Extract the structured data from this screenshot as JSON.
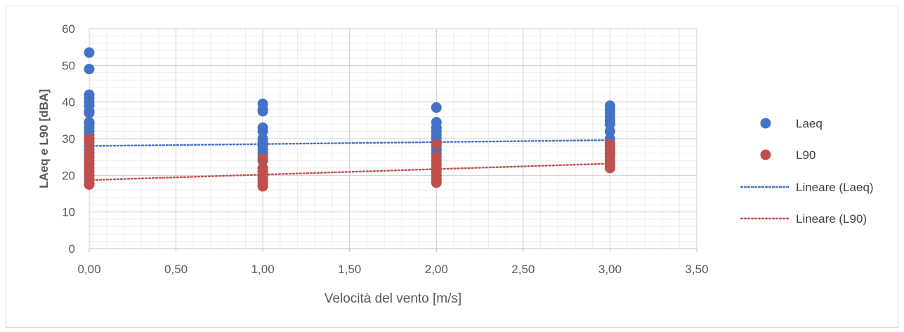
{
  "chart_data": {
    "type": "scatter",
    "title": "",
    "xlabel": "Velocità del vento [m/s]",
    "ylabel": "LAeq e L90 [dBA]",
    "xlim": [
      0,
      3.5
    ],
    "ylim": [
      0,
      60
    ],
    "x_ticks": [
      "0,00",
      "0,50",
      "1,00",
      "1,50",
      "2,00",
      "2,50",
      "3,00",
      "3,50"
    ],
    "y_ticks": [
      "0",
      "10",
      "20",
      "30",
      "40",
      "50",
      "60"
    ],
    "grid": true,
    "legend_position": "right",
    "series": [
      {
        "name": "Laeq",
        "color": "#4472c4",
        "points": [
          [
            0,
            53.5
          ],
          [
            0,
            49
          ],
          [
            0,
            42
          ],
          [
            0,
            41
          ],
          [
            0,
            40
          ],
          [
            0,
            39
          ],
          [
            0,
            37.5
          ],
          [
            0,
            37
          ],
          [
            0,
            34.5
          ],
          [
            0,
            34
          ],
          [
            0,
            33
          ],
          [
            0,
            32
          ],
          [
            0,
            31
          ],
          [
            0,
            30
          ],
          [
            0,
            29
          ],
          [
            0,
            28
          ],
          [
            0,
            27
          ],
          [
            0,
            26
          ],
          [
            0,
            25
          ],
          [
            1,
            39.5
          ],
          [
            1,
            38
          ],
          [
            1,
            37.5
          ],
          [
            1,
            33
          ],
          [
            1,
            32
          ],
          [
            1,
            30
          ],
          [
            1,
            29
          ],
          [
            1,
            28
          ],
          [
            1,
            27
          ],
          [
            1,
            26
          ],
          [
            1,
            25
          ],
          [
            1,
            24
          ],
          [
            1,
            22
          ],
          [
            1,
            21
          ],
          [
            2,
            38.5
          ],
          [
            2,
            34.5
          ],
          [
            2,
            33
          ],
          [
            2,
            32
          ],
          [
            2,
            31
          ],
          [
            2,
            30
          ],
          [
            2,
            29
          ],
          [
            2,
            28
          ],
          [
            2,
            27
          ],
          [
            2,
            26
          ],
          [
            3,
            39
          ],
          [
            3,
            38
          ],
          [
            3,
            37
          ],
          [
            3,
            36
          ],
          [
            3,
            35
          ],
          [
            3,
            34
          ],
          [
            3,
            32
          ],
          [
            3,
            30
          ],
          [
            3,
            29
          ],
          [
            3,
            28
          ],
          [
            3,
            27
          ],
          [
            3,
            26
          ]
        ]
      },
      {
        "name": "L90",
        "color": "#c0504d",
        "points": [
          [
            0,
            30
          ],
          [
            0,
            29
          ],
          [
            0,
            27
          ],
          [
            0,
            25
          ],
          [
            0,
            24
          ],
          [
            0,
            23
          ],
          [
            0,
            22
          ],
          [
            0,
            21
          ],
          [
            0,
            20
          ],
          [
            0,
            19
          ],
          [
            0,
            18
          ],
          [
            0,
            17.5
          ],
          [
            1,
            24.5
          ],
          [
            1,
            22
          ],
          [
            1,
            21
          ],
          [
            1,
            20
          ],
          [
            1,
            19.5
          ],
          [
            1,
            19
          ],
          [
            1,
            18.5
          ],
          [
            1,
            18
          ],
          [
            1,
            17.5
          ],
          [
            1,
            17
          ],
          [
            2,
            28.5
          ],
          [
            2,
            25
          ],
          [
            2,
            24
          ],
          [
            2,
            23
          ],
          [
            2,
            22
          ],
          [
            2,
            21
          ],
          [
            2,
            20
          ],
          [
            2,
            19
          ],
          [
            2,
            18.5
          ],
          [
            2,
            18
          ],
          [
            3,
            28.5
          ],
          [
            3,
            27
          ],
          [
            3,
            26
          ],
          [
            3,
            25
          ],
          [
            3,
            24
          ],
          [
            3,
            23
          ],
          [
            3,
            22.5
          ],
          [
            3,
            22
          ]
        ]
      }
    ],
    "trendlines": [
      {
        "name": "Lineare (Laeq)",
        "color": "#4472c4",
        "x": [
          0,
          3
        ],
        "y": [
          28,
          29.6
        ]
      },
      {
        "name": "Lineare (L90)",
        "color": "#c0504d",
        "x": [
          0,
          3
        ],
        "y": [
          18.7,
          23.2
        ]
      }
    ]
  }
}
